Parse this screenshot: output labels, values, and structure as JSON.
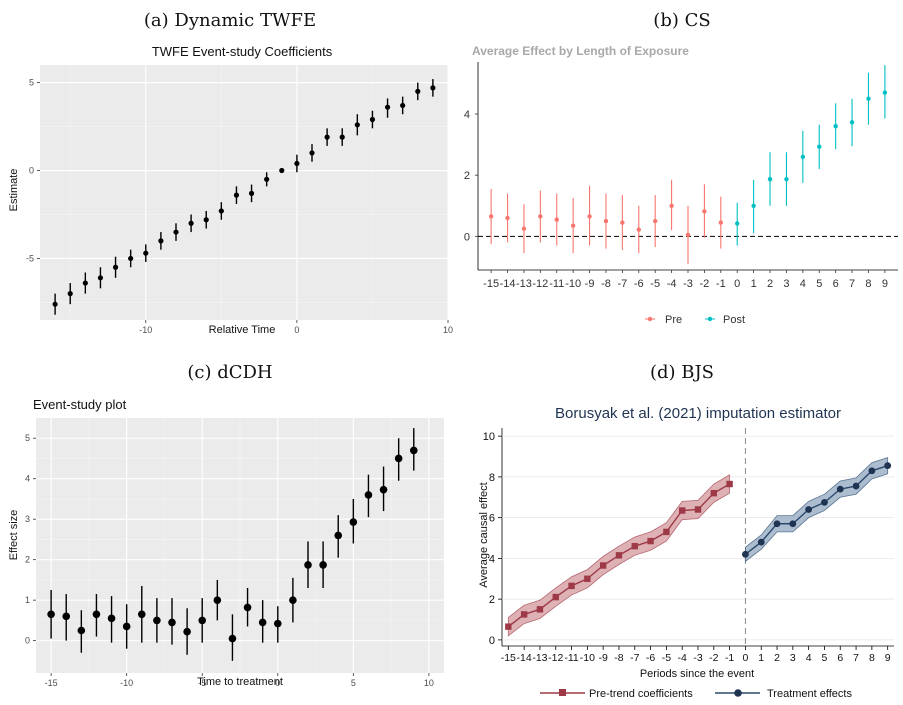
{
  "panels": {
    "a_caption": "(a) Dynamic TWFE",
    "b_caption": "(b) CS",
    "c_caption": "(c) dCDH",
    "d_caption": "(d) BJS"
  },
  "chart_data": [
    {
      "id": "twfe",
      "type": "scatter",
      "title": "TWFE Event-study Coefficients",
      "xlabel": "Relative Time",
      "ylabel": "Estimate",
      "xlim": [
        -17,
        10
      ],
      "ylim": [
        -8.5,
        6
      ],
      "xticks": [
        -10,
        0,
        10
      ],
      "yticks": [
        -5,
        0,
        5
      ],
      "grid": true,
      "x": [
        -16,
        -15,
        -14,
        -13,
        -12,
        -11,
        -10,
        -9,
        -8,
        -7,
        -6,
        -5,
        -4,
        -3,
        -2,
        -1,
        0,
        1,
        2,
        3,
        4,
        5,
        6,
        7,
        8,
        9
      ],
      "y": [
        -7.6,
        -7.0,
        -6.4,
        -6.1,
        -5.5,
        -5.0,
        -4.7,
        -4.0,
        -3.5,
        -3.0,
        -2.8,
        -2.3,
        -1.4,
        -1.3,
        -0.5,
        0.0,
        0.4,
        1.0,
        1.9,
        1.9,
        2.6,
        2.9,
        3.6,
        3.7,
        4.5,
        4.7
      ],
      "lo": [
        -8.2,
        -7.6,
        -7.0,
        -6.7,
        -6.1,
        -5.5,
        -5.2,
        -4.5,
        -4.0,
        -3.5,
        -3.3,
        -2.8,
        -1.9,
        -1.8,
        -0.9,
        0.0,
        -0.1,
        0.5,
        1.4,
        1.4,
        2.0,
        2.4,
        3.0,
        3.2,
        4.0,
        4.2
      ],
      "hi": [
        -7.0,
        -6.4,
        -5.8,
        -5.5,
        -4.9,
        -4.5,
        -4.2,
        -3.5,
        -3.0,
        -2.5,
        -2.3,
        -1.8,
        -0.9,
        -0.8,
        -0.1,
        0.0,
        0.9,
        1.5,
        2.4,
        2.4,
        3.2,
        3.4,
        4.1,
        4.2,
        5.0,
        5.2
      ]
    },
    {
      "id": "cs",
      "type": "scatter",
      "title": "Average Effect by Length of Exposure",
      "xlabel": "",
      "ylabel": "",
      "xlim": [
        -15.8,
        9.8
      ],
      "ylim": [
        -1.1,
        5.7
      ],
      "yticks": [
        0,
        2,
        4
      ],
      "xticks": [
        -15,
        -14,
        -13,
        -12,
        -11,
        -10,
        -9,
        -8,
        -7,
        -6,
        -5,
        -4,
        -3,
        -2,
        -1,
        0,
        1,
        2,
        3,
        4,
        5,
        6,
        7,
        8,
        9
      ],
      "grid": false,
      "legend": {
        "position": "bottom",
        "entries": [
          "Pre",
          "Post"
        ]
      },
      "colors": {
        "pre": "#F8766D",
        "post": "#00BFC4"
      },
      "x": [
        -15,
        -14,
        -13,
        -12,
        -11,
        -10,
        -9,
        -8,
        -7,
        -6,
        -5,
        -4,
        -3,
        -2,
        -1,
        0,
        1,
        2,
        3,
        4,
        5,
        6,
        7,
        8,
        9
      ],
      "y": [
        0.65,
        0.6,
        0.25,
        0.65,
        0.55,
        0.35,
        0.65,
        0.5,
        0.45,
        0.22,
        0.5,
        1.0,
        0.05,
        0.82,
        0.45,
        0.42,
        1.0,
        1.87,
        1.87,
        2.6,
        2.93,
        3.6,
        3.73,
        4.5,
        4.7
      ],
      "lo": [
        -0.25,
        -0.2,
        -0.55,
        -0.2,
        -0.3,
        -0.55,
        -0.3,
        -0.4,
        -0.45,
        -0.55,
        -0.35,
        0.2,
        -0.9,
        -0.05,
        -0.4,
        -0.3,
        0.1,
        1.0,
        1.0,
        1.75,
        2.2,
        2.85,
        2.95,
        3.65,
        3.85
      ],
      "hi": [
        1.55,
        1.4,
        1.05,
        1.5,
        1.4,
        1.25,
        1.65,
        1.4,
        1.35,
        1.0,
        1.35,
        1.85,
        1.0,
        1.7,
        1.3,
        1.1,
        1.85,
        2.75,
        2.75,
        3.45,
        3.65,
        4.35,
        4.5,
        5.35,
        5.6
      ]
    },
    {
      "id": "dcdh",
      "type": "scatter",
      "title": "Event-study plot",
      "xlabel": "Time to treatment",
      "ylabel": "Effect size",
      "xlim": [
        -16,
        11
      ],
      "ylim": [
        -0.8,
        5.5
      ],
      "xticks": [
        -15,
        -10,
        -5,
        0,
        5,
        10
      ],
      "yticks": [
        0,
        1,
        2,
        3,
        4,
        5
      ],
      "grid": true,
      "x": [
        -15,
        -14,
        -13,
        -12,
        -11,
        -10,
        -9,
        -8,
        -7,
        -6,
        -5,
        -4,
        -3,
        -2,
        -1,
        0,
        1,
        2,
        3,
        4,
        5,
        6,
        7,
        8,
        9
      ],
      "y": [
        0.65,
        0.6,
        0.25,
        0.65,
        0.55,
        0.35,
        0.65,
        0.5,
        0.45,
        0.22,
        0.5,
        1.0,
        0.05,
        0.82,
        0.45,
        0.42,
        1.0,
        1.87,
        1.87,
        2.6,
        2.93,
        3.6,
        3.73,
        4.5,
        4.7
      ],
      "lo": [
        0.05,
        0.0,
        -0.3,
        0.1,
        -0.05,
        -0.2,
        -0.05,
        -0.05,
        -0.1,
        -0.35,
        -0.05,
        0.5,
        -0.5,
        0.35,
        -0.05,
        -0.05,
        0.45,
        1.3,
        1.3,
        2.05,
        2.4,
        3.05,
        3.2,
        3.95,
        4.2
      ],
      "hi": [
        1.25,
        1.15,
        0.75,
        1.15,
        1.1,
        0.9,
        1.35,
        1.05,
        1.05,
        0.8,
        1.05,
        1.5,
        0.65,
        1.3,
        1.0,
        0.85,
        1.55,
        2.45,
        2.45,
        3.1,
        3.5,
        4.1,
        4.3,
        5.0,
        5.25
      ]
    },
    {
      "id": "bjs",
      "type": "line",
      "title": "Borusyak et al. (2021) imputation estimator",
      "xlabel": "Periods since the event",
      "ylabel": "Average causal effect",
      "xlim": [
        -15.4,
        9.4
      ],
      "ylim": [
        -0.3,
        10.4
      ],
      "xticks": [
        -15,
        -14,
        -13,
        -12,
        -11,
        -10,
        -9,
        -8,
        -7,
        -6,
        -5,
        -4,
        -3,
        -2,
        -1,
        0,
        1,
        2,
        3,
        4,
        5,
        6,
        7,
        8,
        9
      ],
      "yticks": [
        0,
        2,
        4,
        6,
        8,
        10
      ],
      "grid": true,
      "event_line_x": 0,
      "legend": {
        "position": "bottom",
        "entries": [
          "Pre-trend coefficients",
          "Treatment effects"
        ]
      },
      "colors": {
        "pre": "#9E3A47",
        "post": "#2B4A6E"
      },
      "series": [
        {
          "name": "Pre-trend coefficients",
          "x": [
            -15,
            -14,
            -13,
            -12,
            -11,
            -10,
            -9,
            -8,
            -7,
            -6,
            -5,
            -4,
            -3,
            -2,
            -1
          ],
          "y": [
            0.65,
            1.25,
            1.5,
            2.1,
            2.65,
            3.0,
            3.65,
            4.15,
            4.6,
            4.85,
            5.3,
            6.35,
            6.4,
            7.2,
            7.65
          ],
          "lo": [
            0.2,
            0.8,
            1.05,
            1.65,
            2.2,
            2.55,
            3.2,
            3.7,
            4.15,
            4.4,
            4.85,
            5.9,
            5.95,
            6.75,
            7.2
          ],
          "hi": [
            1.1,
            1.7,
            1.95,
            2.55,
            3.1,
            3.45,
            4.1,
            4.6,
            5.05,
            5.3,
            5.75,
            6.8,
            6.85,
            7.65,
            8.1
          ]
        },
        {
          "name": "Treatment effects",
          "x": [
            0,
            1,
            2,
            3,
            4,
            5,
            6,
            7,
            8,
            9
          ],
          "y": [
            4.2,
            4.8,
            5.7,
            5.7,
            6.4,
            6.75,
            7.4,
            7.55,
            8.3,
            8.55
          ],
          "lo": [
            3.85,
            4.45,
            5.3,
            5.3,
            6.0,
            6.35,
            7.0,
            7.15,
            7.9,
            8.15
          ],
          "hi": [
            4.55,
            5.15,
            6.1,
            6.1,
            6.8,
            7.15,
            7.8,
            7.95,
            8.7,
            8.95
          ]
        }
      ]
    }
  ]
}
